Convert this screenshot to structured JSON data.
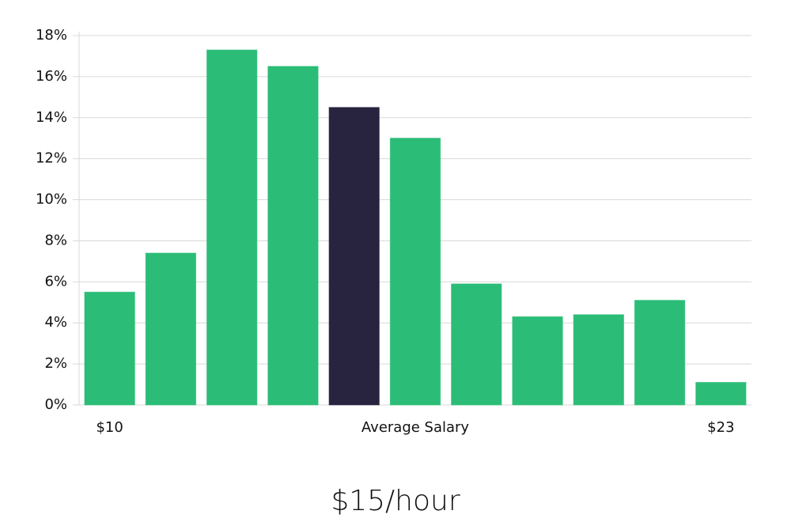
{
  "chart_data": {
    "type": "bar",
    "categories": [
      "$10",
      null,
      null,
      null,
      null,
      null,
      null,
      null,
      null,
      null,
      "$23"
    ],
    "values": [
      5.5,
      7.4,
      17.3,
      16.5,
      14.5,
      13.0,
      5.9,
      4.3,
      4.4,
      5.1,
      1.1
    ],
    "colors": [
      "#2bbd77",
      "#2bbd77",
      "#2bbd77",
      "#2bbd77",
      "#28233f",
      "#2bbd77",
      "#2bbd77",
      "#2bbd77",
      "#2bbd77",
      "#2bbd77",
      "#2bbd77"
    ],
    "x_label": "Average Salary",
    "subtitle": "$15/hour",
    "ylim": [
      0,
      18
    ],
    "yticks": [
      {
        "value": 0,
        "label": "0%"
      },
      {
        "value": 2,
        "label": "2%"
      },
      {
        "value": 4,
        "label": "4%"
      },
      {
        "value": 6,
        "label": "6%"
      },
      {
        "value": 8,
        "label": "8%"
      },
      {
        "value": 10,
        "label": "10%"
      },
      {
        "value": 12,
        "label": "12%"
      },
      {
        "value": 14,
        "label": "14%"
      },
      {
        "value": 16,
        "label": "16%"
      },
      {
        "value": 18,
        "label": "18%"
      }
    ],
    "grid": true
  }
}
